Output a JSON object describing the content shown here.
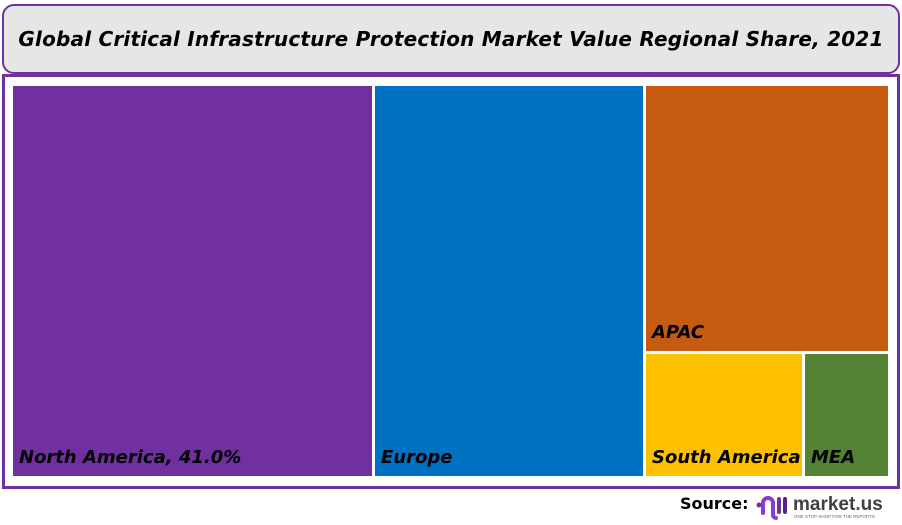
{
  "chart_data": {
    "type": "treemap",
    "title": "Global Critical Infrastructure Protection Market Value Regional Share, 2021",
    "unit": "%",
    "items": [
      {
        "name": "North America",
        "label": "North America, 41.0%",
        "value": 41.0,
        "color": "#7030a0"
      },
      {
        "name": "Europe",
        "label": "Europe",
        "value": 31.0,
        "color": "#0070c0"
      },
      {
        "name": "APAC",
        "label": "APAC",
        "value": 19.0,
        "color": "#c55a11"
      },
      {
        "name": "South America",
        "label": "South America",
        "value": 5.8,
        "color": "#ffc000"
      },
      {
        "name": "MEA",
        "label": "MEA",
        "value": 3.2,
        "color": "#548235"
      }
    ]
  },
  "footer": {
    "source_label": "Source:",
    "logo_text": "market.us",
    "logo_tagline": "ONE STOP SHOP FOR THE REPORTS"
  },
  "colors": {
    "frame": "#7030a0",
    "title_bg": "#e6e6e6"
  }
}
